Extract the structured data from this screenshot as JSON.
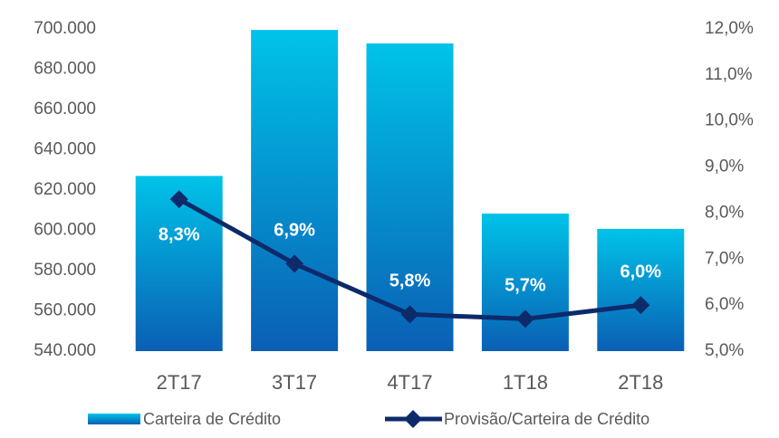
{
  "chart_data": {
    "type": "bar_line",
    "categories": [
      "2T17",
      "3T17",
      "4T17",
      "1T18",
      "2T18"
    ],
    "series": [
      {
        "name": "Carteira de Crédito",
        "type": "bar",
        "color": "#00c3e8",
        "values": [
          627000,
          699500,
          692800,
          608300,
          600700
        ]
      },
      {
        "name": "Provisão/Carteira de Crédito",
        "type": "line",
        "axis": "y2",
        "color": "#0d2a6b",
        "values": [
          8.3,
          6.9,
          5.8,
          5.7,
          6.0
        ],
        "value_labels": [
          "8,3%",
          "6,9%",
          "5,8%",
          "5,7%",
          "6,0%"
        ]
      }
    ],
    "ylim": [
      540000,
      700000
    ],
    "yticks": [
      {
        "value": 540000,
        "label": "540.000"
      },
      {
        "value": 560000,
        "label": "560.000"
      },
      {
        "value": 580000,
        "label": "580.000"
      },
      {
        "value": 600000,
        "label": "600.000"
      },
      {
        "value": 620000,
        "label": "620.000"
      },
      {
        "value": 640000,
        "label": "640.000"
      },
      {
        "value": 660000,
        "label": "660.000"
      },
      {
        "value": 680000,
        "label": "680.000"
      },
      {
        "value": 700000,
        "label": "700.000"
      }
    ],
    "y2lim": [
      5,
      12
    ],
    "y2ticks": [
      {
        "value": 5,
        "label": "5,0%"
      },
      {
        "value": 6,
        "label": "6,0%"
      },
      {
        "value": 7,
        "label": "7,0%"
      },
      {
        "value": 8,
        "label": "8,0%"
      },
      {
        "value": 9,
        "label": "9,0%"
      },
      {
        "value": 10,
        "label": "10,0%"
      },
      {
        "value": 11,
        "label": "11,0%"
      },
      {
        "value": 12,
        "label": "12,0%"
      }
    ],
    "legend": "bottom"
  }
}
